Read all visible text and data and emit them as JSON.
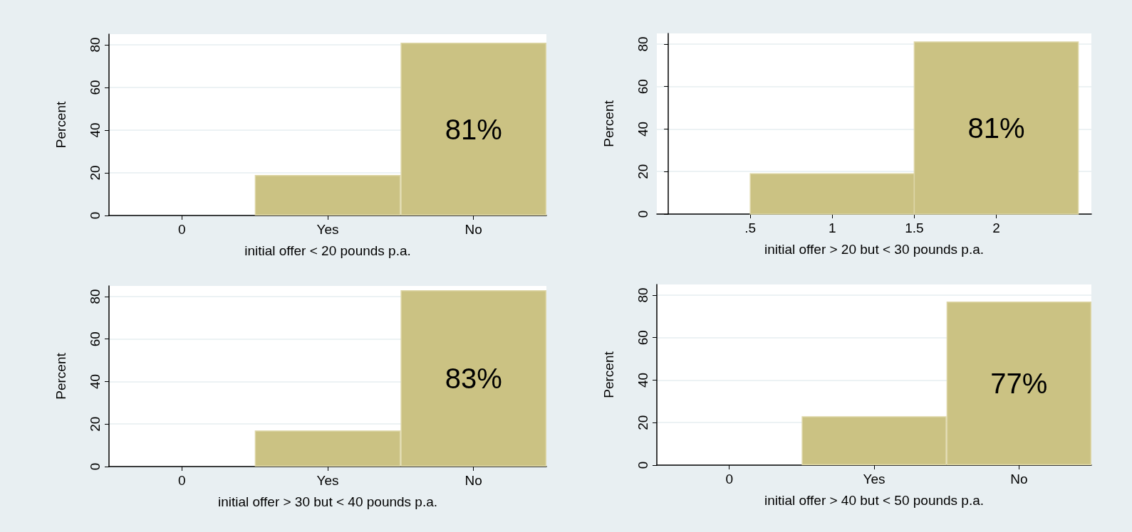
{
  "chart_data": [
    {
      "type": "bar",
      "xlabel": "initial offer < 20 pounds p.a.",
      "ylabel": "Percent",
      "categories": [
        "0",
        "Yes",
        "No"
      ],
      "values": [
        null,
        19,
        81
      ],
      "value_labels": [
        null,
        null,
        "81%"
      ],
      "color": "#cbc283",
      "ylim": [
        0,
        85
      ],
      "yticks": [
        0,
        20,
        40,
        60,
        80
      ],
      "grid": "y"
    },
    {
      "type": "histogram",
      "xlabel": "initial offer > 20 but < 30 pounds p.a.",
      "ylabel": "Percent",
      "bins": [
        0.5,
        1.5,
        2.5
      ],
      "values": [
        19,
        81
      ],
      "value_labels": [
        null,
        "81%"
      ],
      "color": "#cbc283",
      "xlim": [
        -0.07,
        2.58
      ],
      "xticks": [
        {
          "value": 0.5,
          "label": ".5"
        },
        1,
        1.5,
        2
      ],
      "ylim": [
        0,
        85
      ],
      "yticks": [
        0,
        20,
        40,
        60,
        80
      ],
      "grid": "y"
    },
    {
      "type": "bar",
      "xlabel": "initial offer > 30 but < 40 pounds p.a.",
      "ylabel": "Percent",
      "categories": [
        "0",
        "Yes",
        "No"
      ],
      "values": [
        null,
        17,
        83
      ],
      "value_labels": [
        null,
        null,
        "83%"
      ],
      "color": "#cbc283",
      "ylim": [
        0,
        85
      ],
      "yticks": [
        0,
        20,
        40,
        60,
        80
      ],
      "grid": "y"
    },
    {
      "type": "bar",
      "xlabel": "initial offer > 40 but < 50 pounds p.a.",
      "ylabel": "Percent",
      "categories": [
        "0",
        "Yes",
        "No"
      ],
      "values": [
        null,
        23,
        77
      ],
      "value_labels": [
        null,
        null,
        "77%"
      ],
      "color": "#cbc283",
      "ylim": [
        0,
        85
      ],
      "yticks": [
        0,
        20,
        40,
        60,
        80
      ],
      "grid": "y"
    }
  ]
}
